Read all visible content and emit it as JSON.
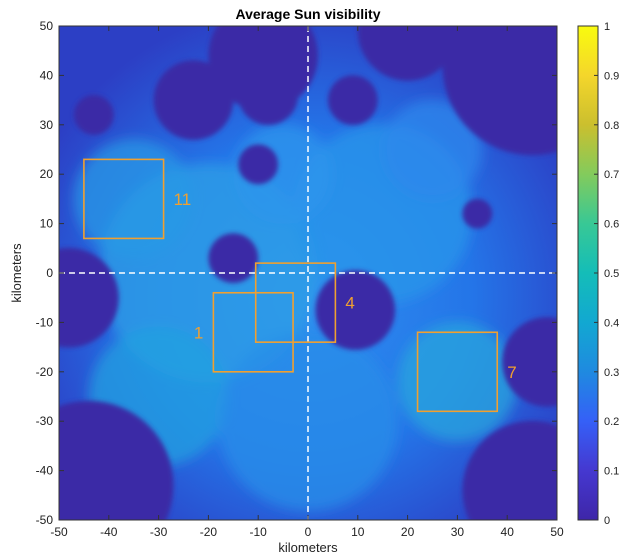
{
  "chart_data": {
    "type": "heatmap",
    "title": "Average Sun visibility",
    "xlabel": "kilometers",
    "ylabel": "kilometers",
    "xlim": [
      -50,
      50
    ],
    "ylim": [
      -50,
      50
    ],
    "xticks": [
      -50,
      -40,
      -30,
      -20,
      -10,
      0,
      10,
      20,
      30,
      40,
      50
    ],
    "yticks": [
      -50,
      -40,
      -30,
      -20,
      -10,
      0,
      10,
      20,
      30,
      40,
      50
    ],
    "colorbar": {
      "min": 0,
      "max": 1,
      "ticks": [
        "0",
        "0.1",
        "0.2",
        "0.3",
        "0.4",
        "0.5",
        "0.6",
        "0.7",
        "0.8",
        "0.9",
        "1"
      ],
      "colormap": "parula"
    },
    "crosshair": {
      "x": 0,
      "y": 0,
      "style": "dashed",
      "color": "#ffffff"
    },
    "regions": [
      {
        "label": "11",
        "x0": -45,
        "x1": -29,
        "y0": 7,
        "y1": 23,
        "label_side": "right"
      },
      {
        "label": "1",
        "x0": -19,
        "x1": -3,
        "y0": -20,
        "y1": -4,
        "label_side": "left"
      },
      {
        "label": "4",
        "x0": -10.5,
        "x1": 5.5,
        "y0": -14,
        "y1": 2,
        "label_side": "right"
      },
      {
        "label": "7",
        "x0": 22,
        "x1": 38,
        "y0": -28,
        "y1": -12,
        "label_side": "right"
      }
    ],
    "region_color": "#f0a030",
    "dark_craters": [
      {
        "x": 45,
        "y": 42,
        "r": 18
      },
      {
        "x": 9.5,
        "y": -7.5,
        "r": 8
      },
      {
        "x": -44,
        "y": -43,
        "r": 17
      },
      {
        "x": 45,
        "y": -44,
        "r": 14
      },
      {
        "x": -48,
        "y": -5,
        "r": 10
      },
      {
        "x": -9,
        "y": 44,
        "r": 11
      },
      {
        "x": 20,
        "y": 49,
        "r": 10
      },
      {
        "x": -8,
        "y": 36,
        "r": 6
      },
      {
        "x": -23,
        "y": 35,
        "r": 8
      },
      {
        "x": 9,
        "y": 35,
        "r": 5
      },
      {
        "x": -15,
        "y": 3,
        "r": 5
      },
      {
        "x": -43,
        "y": 32,
        "r": 4
      },
      {
        "x": 48,
        "y": -18,
        "r": 9
      },
      {
        "x": -10,
        "y": 22,
        "r": 4
      },
      {
        "x": 34,
        "y": 12,
        "r": 3
      }
    ]
  }
}
